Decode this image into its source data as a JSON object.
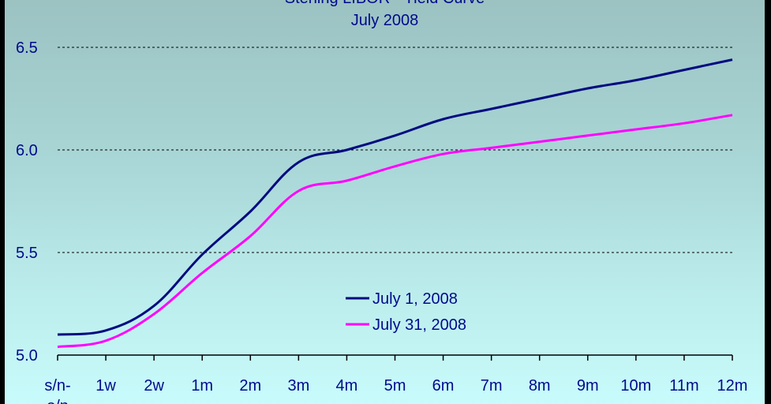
{
  "chart": {
    "title": "Sterling LIBOR - Yield Curve",
    "subtitle": "July 2008"
  },
  "colors": {
    "series_1": "#000a80",
    "series_2": "#ff00ff",
    "text": "#000a8c",
    "background_top": "#9cc2c2",
    "background_bottom": "#c8fbfb"
  },
  "chart_data": {
    "type": "line",
    "title": "Sterling LIBOR - Yield Curve",
    "subtitle": "July 2008",
    "xlabel": "",
    "ylabel": "",
    "categories": [
      "s/n-o/n",
      "1w",
      "2w",
      "1m",
      "2m",
      "3m",
      "4m",
      "5m",
      "6m",
      "7m",
      "8m",
      "9m",
      "10m",
      "11m",
      "12m"
    ],
    "series": [
      {
        "name": "July 1, 2008",
        "color": "#000a80",
        "values": [
          5.1,
          5.12,
          5.24,
          5.49,
          5.7,
          5.94,
          6.0,
          6.07,
          6.15,
          6.2,
          6.25,
          6.3,
          6.34,
          6.39,
          6.44
        ]
      },
      {
        "name": "July 31, 2008",
        "color": "#ff00ff",
        "values": [
          5.04,
          5.07,
          5.2,
          5.4,
          5.58,
          5.8,
          5.85,
          5.92,
          5.98,
          6.01,
          6.04,
          6.07,
          6.1,
          6.13,
          6.17
        ]
      }
    ],
    "ylim": [
      5.0,
      6.5
    ],
    "yticks": [
      "5.0",
      "5.5",
      "6.0",
      "6.5"
    ],
    "grid": "horizontal dotted",
    "legend_position": "inside, lower center"
  }
}
